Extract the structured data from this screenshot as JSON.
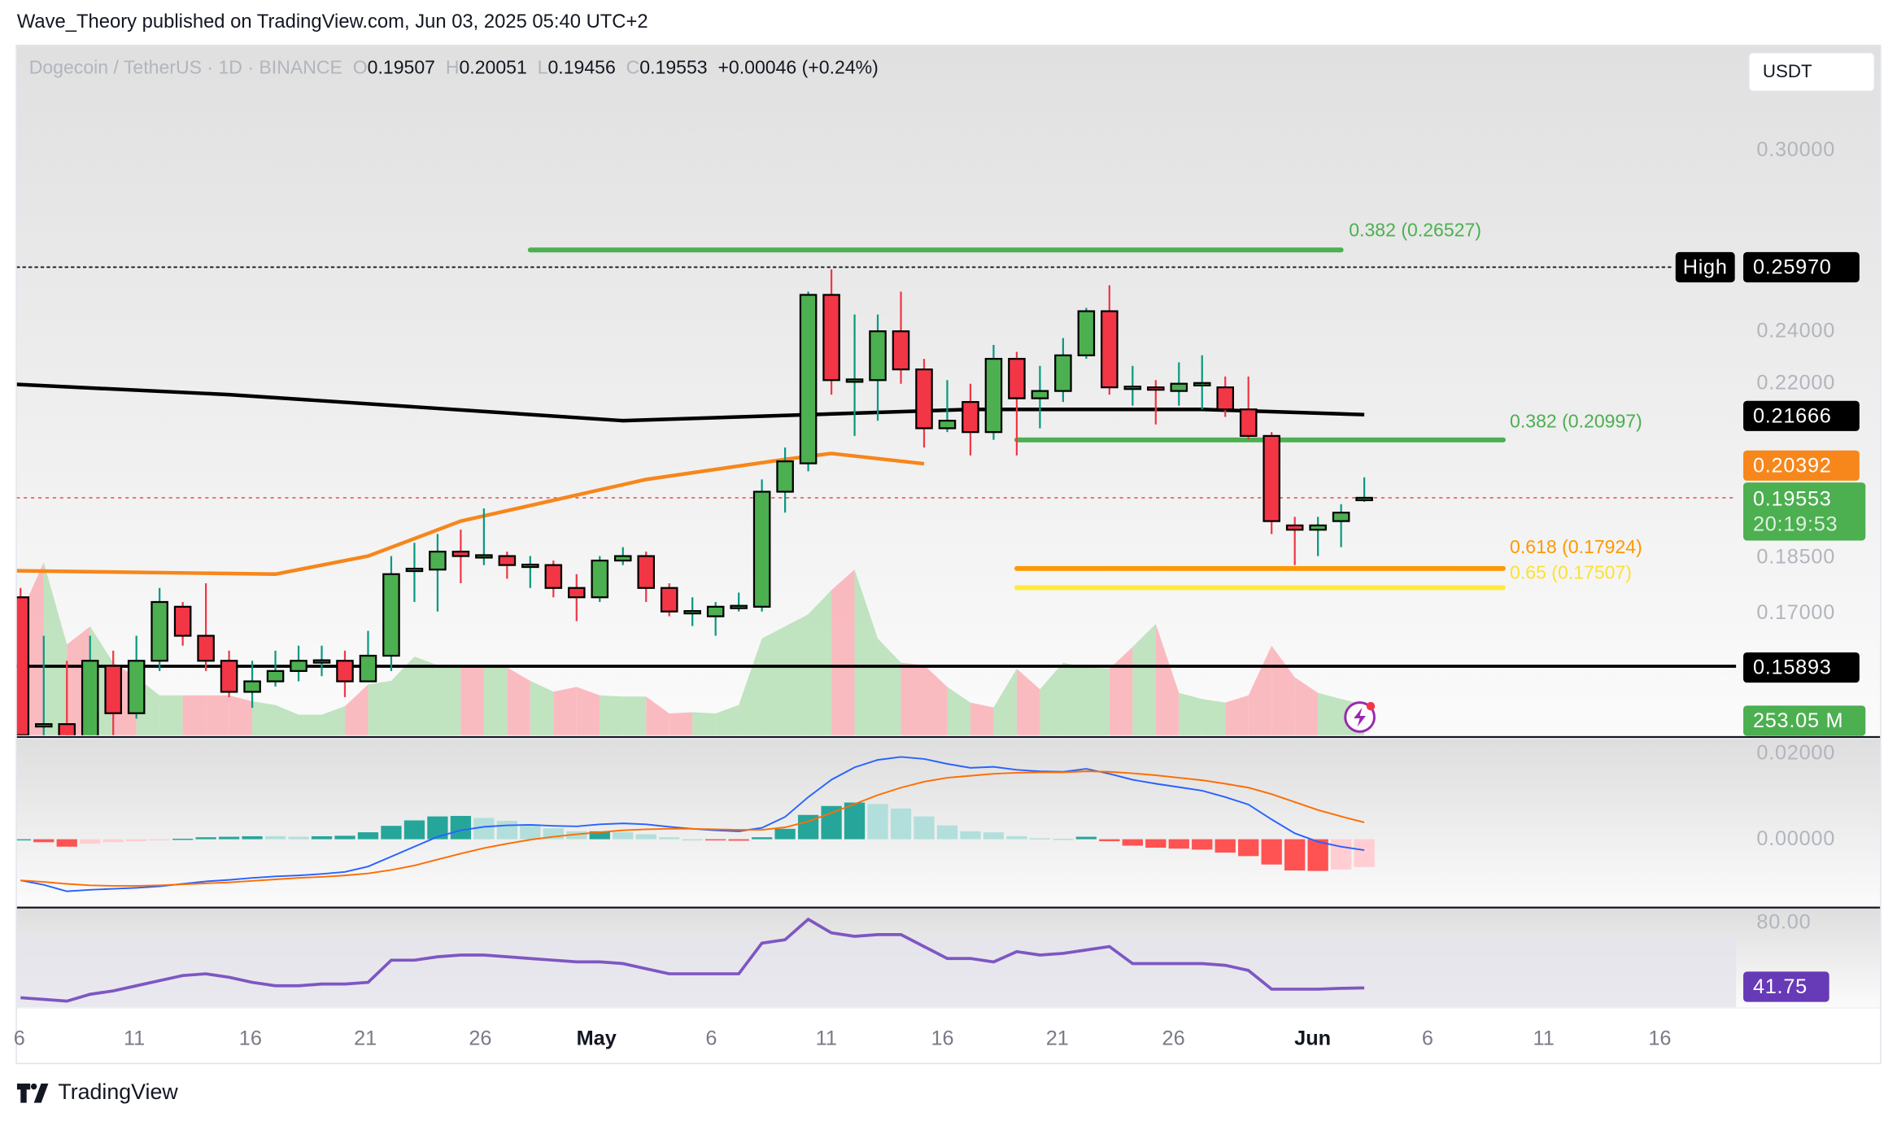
{
  "header": {
    "published": "Wave_Theory published on TradingView.com, Jun 03, 2025 05:40 UTC+2"
  },
  "legend": {
    "symbol": "Dogecoin / TetherUS · 1D · BINANCE",
    "o_label": "O",
    "open": "0.19507",
    "h_label": "H",
    "high": "0.20051",
    "l_label": "L",
    "low": "0.19456",
    "c_label": "C",
    "close": "0.19553",
    "change": "+0.00046 (+0.24%)"
  },
  "currency_button": "USDT",
  "price_axis": [
    "0.30000",
    "0.24000",
    "0.22000",
    "0.18500",
    "0.17000"
  ],
  "macd_axis": [
    "0.02000",
    "0.00000"
  ],
  "rsi_axis": [
    "80.00"
  ],
  "tags": {
    "high_label": "High",
    "high_value": "0.25970",
    "ma200": "0.21666",
    "ema50": "0.20392",
    "last_price": "0.19553",
    "countdown": "20:19:53",
    "support": "0.15893",
    "volume": "253.05 M",
    "rsi": "41.75"
  },
  "fib_labels": {
    "upper": "0.382 (0.26527)",
    "mid": "0.382 (0.20997)",
    "f618": "0.618 (0.17924)",
    "f65": "0.65 (0.17507)"
  },
  "date_axis": [
    "6",
    "11",
    "16",
    "21",
    "26",
    "May",
    "6",
    "11",
    "16",
    "21",
    "26",
    "Jun",
    "6",
    "11",
    "16"
  ],
  "footer": {
    "brand": "TradingView"
  },
  "colors": {
    "up": "#4caf50",
    "down": "#f23645",
    "ma200": "#000000",
    "ema50": "#f7861b",
    "fib382": "#4caf50",
    "fib618": "#ff9800",
    "fib65": "#ffeb3b",
    "macd": "#2962ff",
    "signal": "#ff6d00",
    "rsi": "#7e57c2"
  },
  "chart_data": {
    "type": "candlestick",
    "title": "Dogecoin / TetherUS · 1D · BINANCE",
    "start_date": "2025-04-06",
    "end_date": "2025-06-03",
    "price_scale": "log",
    "ohlc": [
      [
        0.173,
        0.175,
        0.143,
        0.146
      ],
      [
        0.148,
        0.165,
        0.142,
        0.148
      ],
      [
        0.148,
        0.16,
        0.14,
        0.142
      ],
      [
        0.142,
        0.165,
        0.14,
        0.16
      ],
      [
        0.159,
        0.162,
        0.146,
        0.15
      ],
      [
        0.15,
        0.165,
        0.149,
        0.16
      ],
      [
        0.16,
        0.175,
        0.158,
        0.172
      ],
      [
        0.171,
        0.172,
        0.163,
        0.165
      ],
      [
        0.165,
        0.176,
        0.158,
        0.16
      ],
      [
        0.16,
        0.162,
        0.153,
        0.154
      ],
      [
        0.154,
        0.16,
        0.151,
        0.156
      ],
      [
        0.156,
        0.162,
        0.155,
        0.158
      ],
      [
        0.158,
        0.163,
        0.156,
        0.16
      ],
      [
        0.16,
        0.163,
        0.157,
        0.1601
      ],
      [
        0.16,
        0.162,
        0.153,
        0.156
      ],
      [
        0.156,
        0.166,
        0.156,
        0.161
      ],
      [
        0.161,
        0.182,
        0.158,
        0.178
      ],
      [
        0.179,
        0.185,
        0.172,
        0.1792
      ],
      [
        0.179,
        0.187,
        0.17,
        0.183
      ],
      [
        0.183,
        0.188,
        0.176,
        0.182
      ],
      [
        0.182,
        0.193,
        0.18,
        0.1822
      ],
      [
        0.182,
        0.183,
        0.177,
        0.18
      ],
      [
        0.18,
        0.182,
        0.175,
        0.1801
      ],
      [
        0.18,
        0.181,
        0.173,
        0.175
      ],
      [
        0.175,
        0.178,
        0.168,
        0.173
      ],
      [
        0.173,
        0.182,
        0.172,
        0.181
      ],
      [
        0.181,
        0.184,
        0.18,
        0.182
      ],
      [
        0.182,
        0.183,
        0.172,
        0.175
      ],
      [
        0.175,
        0.176,
        0.169,
        0.17
      ],
      [
        0.17,
        0.173,
        0.167,
        0.1701
      ],
      [
        0.169,
        0.172,
        0.165,
        0.171
      ],
      [
        0.171,
        0.174,
        0.17,
        0.1712
      ],
      [
        0.171,
        0.2,
        0.17,
        0.197
      ],
      [
        0.197,
        0.208,
        0.192,
        0.2045
      ],
      [
        0.204,
        0.252,
        0.202,
        0.251
      ],
      [
        0.251,
        0.259,
        0.222,
        0.226
      ],
      [
        0.226,
        0.245,
        0.211,
        0.2262
      ],
      [
        0.226,
        0.245,
        0.215,
        0.24
      ],
      [
        0.24,
        0.252,
        0.225,
        0.229
      ],
      [
        0.229,
        0.232,
        0.208,
        0.213
      ],
      [
        0.213,
        0.226,
        0.212,
        0.215
      ],
      [
        0.22,
        0.225,
        0.206,
        0.212
      ],
      [
        0.212,
        0.236,
        0.21,
        0.232
      ],
      [
        0.232,
        0.234,
        0.206,
        0.221
      ],
      [
        0.221,
        0.23,
        0.213,
        0.223
      ],
      [
        0.223,
        0.238,
        0.22,
        0.233
      ],
      [
        0.233,
        0.247,
        0.232,
        0.246
      ],
      [
        0.246,
        0.254,
        0.222,
        0.224
      ],
      [
        0.224,
        0.23,
        0.219,
        0.2242
      ],
      [
        0.224,
        0.226,
        0.214,
        0.2238
      ],
      [
        0.223,
        0.231,
        0.219,
        0.225
      ],
      [
        0.225,
        0.233,
        0.218,
        0.2252
      ],
      [
        0.224,
        0.227,
        0.216,
        0.218
      ],
      [
        0.218,
        0.227,
        0.21,
        0.211
      ],
      [
        0.211,
        0.212,
        0.187,
        0.19
      ],
      [
        0.189,
        0.191,
        0.18,
        0.188
      ],
      [
        0.188,
        0.191,
        0.182,
        0.189
      ],
      [
        0.19,
        0.194,
        0.184,
        0.192
      ],
      [
        0.19507,
        0.20051,
        0.19456,
        0.19553
      ]
    ],
    "volume_m": [
      1000,
      1430,
      750,
      900,
      600,
      480,
      330,
      330,
      330,
      330,
      280,
      250,
      170,
      170,
      240,
      420,
      450,
      650,
      580,
      560,
      560,
      560,
      450,
      360,
      400,
      330,
      320,
      320,
      180,
      190,
      180,
      250,
      800,
      900,
      1000,
      1200,
      1370,
      800,
      600,
      580,
      400,
      270,
      230,
      550,
      380,
      600,
      560,
      550,
      730,
      920,
      350,
      300,
      270,
      330,
      740,
      480,
      350,
      300,
      253.05
    ],
    "ma200": [
      [
        0,
        0.233
      ],
      [
        15,
        0.226
      ],
      [
        28,
        0.222
      ],
      [
        45,
        0.215
      ],
      [
        60,
        0.218
      ],
      [
        70,
        0.218
      ],
      [
        77,
        0.2166
      ]
    ],
    "ema50": [
      [
        0,
        0.198
      ],
      [
        5,
        0.19
      ],
      [
        15,
        0.179
      ],
      [
        30,
        0.178
      ],
      [
        34,
        0.182
      ],
      [
        38,
        0.19
      ],
      [
        46,
        0.2
      ],
      [
        52,
        0.205
      ],
      [
        54,
        0.2065
      ],
      [
        58,
        0.2039
      ]
    ],
    "ma_x_offset_days": -19,
    "fib_levels": [
      {
        "level": 0.382,
        "price": 0.26527,
        "from_day": 22,
        "to_day": 57
      },
      {
        "level": 0.382,
        "price": 0.20997,
        "from_day": 43,
        "to_day": 64
      },
      {
        "level": 0.618,
        "price": 0.17924,
        "from_day": 43,
        "to_day": 64
      },
      {
        "level": 0.65,
        "price": 0.17507,
        "from_day": 43,
        "to_day": 64
      }
    ],
    "support": 0.15893,
    "high": 0.2597,
    "macd": [
      -8.3,
      -9.2,
      -10.5,
      -10.2,
      -10.0,
      -9.8,
      -9.5,
      -9.0,
      -8.5,
      -8.2,
      -7.8,
      -7.5,
      -7.3,
      -7.0,
      -6.6,
      -5.5,
      -3.5,
      -1.5,
      0.5,
      1.8,
      2.5,
      2.8,
      2.9,
      2.7,
      2.6,
      3.0,
      3.2,
      3.0,
      2.5,
      2.1,
      1.8,
      1.6,
      2.3,
      4.5,
      8.5,
      12.0,
      14.5,
      16.0,
      16.6,
      16.2,
      15.2,
      14.4,
      14.6,
      14.0,
      13.7,
      13.6,
      14.2,
      13.2,
      12.0,
      11.2,
      10.5,
      9.8,
      8.5,
      7.0,
      4.0,
      1.2,
      -0.5,
      -1.5,
      -2.2
    ],
    "signal": [
      -8.3,
      -8.6,
      -9.0,
      -9.3,
      -9.4,
      -9.4,
      -9.3,
      -9.1,
      -8.9,
      -8.7,
      -8.4,
      -8.1,
      -7.8,
      -7.6,
      -7.3,
      -6.9,
      -6.2,
      -5.3,
      -4.1,
      -2.9,
      -1.8,
      -0.9,
      -0.1,
      0.5,
      1.0,
      1.4,
      1.8,
      2.0,
      2.1,
      2.1,
      2.0,
      1.9,
      1.9,
      2.4,
      3.6,
      5.3,
      7.1,
      8.9,
      10.4,
      11.6,
      12.4,
      12.8,
      13.2,
      13.4,
      13.5,
      13.5,
      13.7,
      13.6,
      13.3,
      12.9,
      12.4,
      11.9,
      11.2,
      10.4,
      9.1,
      7.5,
      5.9,
      4.6,
      3.4
    ],
    "rsi": [
      36,
      35,
      34,
      38,
      40,
      43,
      46,
      49,
      50,
      48,
      45,
      43,
      43,
      44,
      44,
      45,
      58,
      58,
      60,
      61,
      61,
      60,
      59,
      58,
      57,
      57,
      56,
      53,
      50,
      50,
      50,
      50,
      68,
      70,
      82,
      74,
      72,
      73,
      73,
      66,
      59,
      59,
      57,
      63,
      61,
      62,
      64,
      66,
      56,
      56,
      56,
      56,
      55,
      52,
      41,
      41,
      41,
      41.5,
      41.75
    ],
    "rsi_range": [
      0,
      100
    ]
  }
}
